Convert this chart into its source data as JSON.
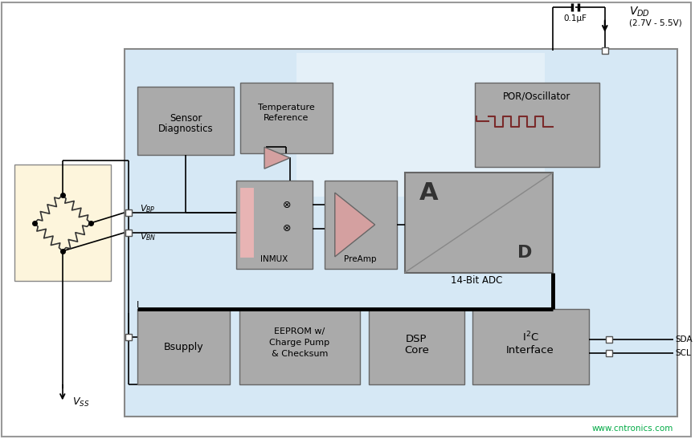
{
  "bg_color": "#ffffff",
  "chip_bg_color": "#d6e8f5",
  "chip_bg_light": "#e4f0f8",
  "block_color": "#aaaaaa",
  "sensor_bg": "#fdf5dc",
  "pink_color": "#e8b4b4",
  "triangle_fill": "#d4a0a0",
  "signal_color": "#7a2a2a",
  "watermark_color": "#00aa44",
  "vdd_label": "(2.7V - 5.5V)",
  "cap_label": "0.1μF",
  "watermark": "www.cntronics.com"
}
